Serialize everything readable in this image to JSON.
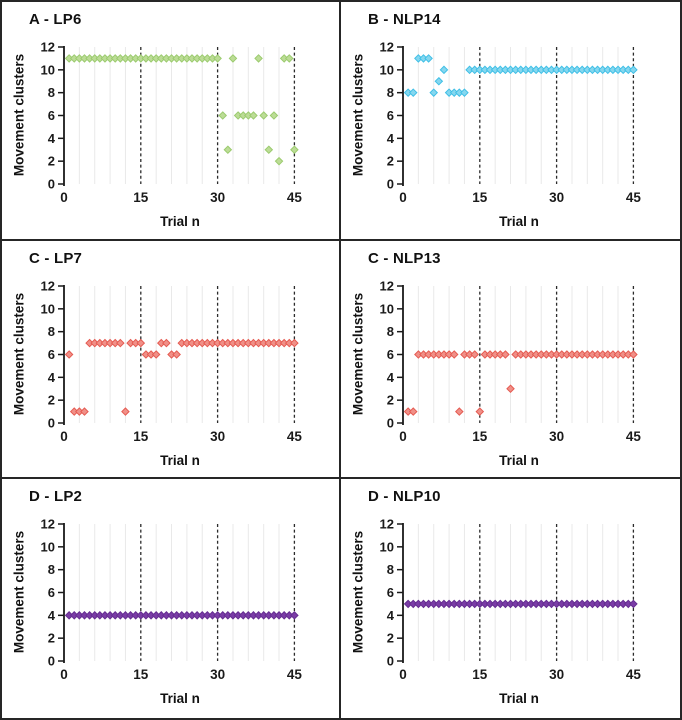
{
  "figure": {
    "ylabel": "Movement clusters",
    "xlabel": "Trial n",
    "x_ticks": [
      0,
      15,
      30,
      45
    ],
    "y_ticks": [
      0,
      2,
      4,
      6,
      8,
      10,
      12
    ],
    "xlim": [
      0,
      47
    ],
    "ylim": [
      0,
      12
    ],
    "major_vlines_x": [
      15,
      30,
      45
    ],
    "minor_vline_step_x": 3,
    "grid": "vertical gridlines only; majors dashed black, minors light gray",
    "colors": {
      "LP6": "#9bcb6e",
      "NLP14": "#3fbfe6",
      "LP7": "#e55a51",
      "NLP13": "#e55a51",
      "LP2": "#652d91",
      "NLP10": "#652d91",
      "axis": "#1a1a1a",
      "major_gridline": "#2b2b2b",
      "minor_gridline": "#e9e9e9"
    }
  },
  "chart_data": [
    {
      "type": "scatter",
      "title": "A - LP6",
      "marker": "diamond",
      "fill": "#bcdc96",
      "stroke": "#9bcb6e",
      "xlabel": "Trial n",
      "ylabel": "Movement clusters",
      "points": [
        [
          1,
          11
        ],
        [
          2,
          11
        ],
        [
          3,
          11
        ],
        [
          4,
          11
        ],
        [
          5,
          11
        ],
        [
          6,
          11
        ],
        [
          7,
          11
        ],
        [
          8,
          11
        ],
        [
          9,
          11
        ],
        [
          10,
          11
        ],
        [
          11,
          11
        ],
        [
          12,
          11
        ],
        [
          13,
          11
        ],
        [
          14,
          11
        ],
        [
          15,
          11
        ],
        [
          16,
          11
        ],
        [
          17,
          11
        ],
        [
          18,
          11
        ],
        [
          19,
          11
        ],
        [
          20,
          11
        ],
        [
          21,
          11
        ],
        [
          22,
          11
        ],
        [
          23,
          11
        ],
        [
          24,
          11
        ],
        [
          25,
          11
        ],
        [
          26,
          11
        ],
        [
          27,
          11
        ],
        [
          28,
          11
        ],
        [
          29,
          11
        ],
        [
          30,
          11
        ],
        [
          31,
          6
        ],
        [
          32,
          3
        ],
        [
          33,
          11
        ],
        [
          34,
          6
        ],
        [
          35,
          6
        ],
        [
          36,
          6
        ],
        [
          37,
          6
        ],
        [
          38,
          11
        ],
        [
          39,
          6
        ],
        [
          40,
          3
        ],
        [
          41,
          6
        ],
        [
          42,
          2
        ],
        [
          43,
          11
        ],
        [
          44,
          11
        ],
        [
          45,
          3
        ]
      ]
    },
    {
      "type": "scatter",
      "title": "B - NLP14",
      "marker": "diamond",
      "fill": "#85d7ef",
      "stroke": "#3fbfe6",
      "xlabel": "Trial n",
      "ylabel": "Movement clusters",
      "points": [
        [
          1,
          8
        ],
        [
          2,
          8
        ],
        [
          3,
          11
        ],
        [
          4,
          11
        ],
        [
          5,
          11
        ],
        [
          6,
          8
        ],
        [
          7,
          9
        ],
        [
          8,
          10
        ],
        [
          9,
          8
        ],
        [
          10,
          8
        ],
        [
          11,
          8
        ],
        [
          12,
          8
        ],
        [
          13,
          10
        ],
        [
          14,
          10
        ],
        [
          15,
          10
        ],
        [
          16,
          10
        ],
        [
          17,
          10
        ],
        [
          18,
          10
        ],
        [
          19,
          10
        ],
        [
          20,
          10
        ],
        [
          21,
          10
        ],
        [
          22,
          10
        ],
        [
          23,
          10
        ],
        [
          24,
          10
        ],
        [
          25,
          10
        ],
        [
          26,
          10
        ],
        [
          27,
          10
        ],
        [
          28,
          10
        ],
        [
          29,
          10
        ],
        [
          30,
          10
        ],
        [
          31,
          10
        ],
        [
          32,
          10
        ],
        [
          33,
          10
        ],
        [
          34,
          10
        ],
        [
          35,
          10
        ],
        [
          36,
          10
        ],
        [
          37,
          10
        ],
        [
          38,
          10
        ],
        [
          39,
          10
        ],
        [
          40,
          10
        ],
        [
          41,
          10
        ],
        [
          42,
          10
        ],
        [
          43,
          10
        ],
        [
          44,
          10
        ],
        [
          45,
          10
        ]
      ]
    },
    {
      "type": "scatter",
      "title": "C - LP7",
      "marker": "diamond",
      "fill": "#f09088",
      "stroke": "#e55a51",
      "xlabel": "Trial n",
      "ylabel": "Movement clusters",
      "points": [
        [
          1,
          6
        ],
        [
          2,
          1
        ],
        [
          3,
          1
        ],
        [
          4,
          1
        ],
        [
          5,
          7
        ],
        [
          6,
          7
        ],
        [
          7,
          7
        ],
        [
          8,
          7
        ],
        [
          9,
          7
        ],
        [
          10,
          7
        ],
        [
          11,
          7
        ],
        [
          12,
          1
        ],
        [
          13,
          7
        ],
        [
          14,
          7
        ],
        [
          15,
          7
        ],
        [
          16,
          6
        ],
        [
          17,
          6
        ],
        [
          18,
          6
        ],
        [
          19,
          7
        ],
        [
          20,
          7
        ],
        [
          21,
          6
        ],
        [
          22,
          6
        ],
        [
          23,
          7
        ],
        [
          24,
          7
        ],
        [
          25,
          7
        ],
        [
          26,
          7
        ],
        [
          27,
          7
        ],
        [
          28,
          7
        ],
        [
          29,
          7
        ],
        [
          30,
          7
        ],
        [
          31,
          7
        ],
        [
          32,
          7
        ],
        [
          33,
          7
        ],
        [
          34,
          7
        ],
        [
          35,
          7
        ],
        [
          36,
          7
        ],
        [
          37,
          7
        ],
        [
          38,
          7
        ],
        [
          39,
          7
        ],
        [
          40,
          7
        ],
        [
          41,
          7
        ],
        [
          42,
          7
        ],
        [
          43,
          7
        ],
        [
          44,
          7
        ],
        [
          45,
          7
        ]
      ]
    },
    {
      "type": "scatter",
      "title": "C - NLP13",
      "marker": "diamond",
      "fill": "#f09088",
      "stroke": "#e55a51",
      "xlabel": "Trial n",
      "ylabel": "Movement clusters",
      "points": [
        [
          1,
          1
        ],
        [
          2,
          1
        ],
        [
          3,
          6
        ],
        [
          4,
          6
        ],
        [
          5,
          6
        ],
        [
          6,
          6
        ],
        [
          7,
          6
        ],
        [
          8,
          6
        ],
        [
          9,
          6
        ],
        [
          10,
          6
        ],
        [
          11,
          1
        ],
        [
          12,
          6
        ],
        [
          13,
          6
        ],
        [
          14,
          6
        ],
        [
          15,
          1
        ],
        [
          16,
          6
        ],
        [
          17,
          6
        ],
        [
          18,
          6
        ],
        [
          19,
          6
        ],
        [
          20,
          6
        ],
        [
          21,
          3
        ],
        [
          22,
          6
        ],
        [
          23,
          6
        ],
        [
          24,
          6
        ],
        [
          25,
          6
        ],
        [
          26,
          6
        ],
        [
          27,
          6
        ],
        [
          28,
          6
        ],
        [
          29,
          6
        ],
        [
          30,
          6
        ],
        [
          31,
          6
        ],
        [
          32,
          6
        ],
        [
          33,
          6
        ],
        [
          34,
          6
        ],
        [
          35,
          6
        ],
        [
          36,
          6
        ],
        [
          37,
          6
        ],
        [
          38,
          6
        ],
        [
          39,
          6
        ],
        [
          40,
          6
        ],
        [
          41,
          6
        ],
        [
          42,
          6
        ],
        [
          43,
          6
        ],
        [
          44,
          6
        ],
        [
          45,
          6
        ]
      ]
    },
    {
      "type": "scatter",
      "title": "D - LP2",
      "marker": "diamond",
      "fill": "#7a3ca6",
      "stroke": "#652d91",
      "xlabel": "Trial n",
      "ylabel": "Movement clusters",
      "points": [
        [
          1,
          4
        ],
        [
          2,
          4
        ],
        [
          3,
          4
        ],
        [
          4,
          4
        ],
        [
          5,
          4
        ],
        [
          6,
          4
        ],
        [
          7,
          4
        ],
        [
          8,
          4
        ],
        [
          9,
          4
        ],
        [
          10,
          4
        ],
        [
          11,
          4
        ],
        [
          12,
          4
        ],
        [
          13,
          4
        ],
        [
          14,
          4
        ],
        [
          15,
          4
        ],
        [
          16,
          4
        ],
        [
          17,
          4
        ],
        [
          18,
          4
        ],
        [
          19,
          4
        ],
        [
          20,
          4
        ],
        [
          21,
          4
        ],
        [
          22,
          4
        ],
        [
          23,
          4
        ],
        [
          24,
          4
        ],
        [
          25,
          4
        ],
        [
          26,
          4
        ],
        [
          27,
          4
        ],
        [
          28,
          4
        ],
        [
          29,
          4
        ],
        [
          30,
          4
        ],
        [
          31,
          4
        ],
        [
          32,
          4
        ],
        [
          33,
          4
        ],
        [
          34,
          4
        ],
        [
          35,
          4
        ],
        [
          36,
          4
        ],
        [
          37,
          4
        ],
        [
          38,
          4
        ],
        [
          39,
          4
        ],
        [
          40,
          4
        ],
        [
          41,
          4
        ],
        [
          42,
          4
        ],
        [
          43,
          4
        ],
        [
          44,
          4
        ],
        [
          45,
          4
        ]
      ]
    },
    {
      "type": "scatter",
      "title": "D - NLP10",
      "marker": "diamond",
      "fill": "#7a3ca6",
      "stroke": "#652d91",
      "xlabel": "Trial n",
      "ylabel": "Movement clusters",
      "points": [
        [
          1,
          5
        ],
        [
          2,
          5
        ],
        [
          3,
          5
        ],
        [
          4,
          5
        ],
        [
          5,
          5
        ],
        [
          6,
          5
        ],
        [
          7,
          5
        ],
        [
          8,
          5
        ],
        [
          9,
          5
        ],
        [
          10,
          5
        ],
        [
          11,
          5
        ],
        [
          12,
          5
        ],
        [
          13,
          5
        ],
        [
          14,
          5
        ],
        [
          15,
          5
        ],
        [
          16,
          5
        ],
        [
          17,
          5
        ],
        [
          18,
          5
        ],
        [
          19,
          5
        ],
        [
          20,
          5
        ],
        [
          21,
          5
        ],
        [
          22,
          5
        ],
        [
          23,
          5
        ],
        [
          24,
          5
        ],
        [
          25,
          5
        ],
        [
          26,
          5
        ],
        [
          27,
          5
        ],
        [
          28,
          5
        ],
        [
          29,
          5
        ],
        [
          30,
          5
        ],
        [
          31,
          5
        ],
        [
          32,
          5
        ],
        [
          33,
          5
        ],
        [
          34,
          5
        ],
        [
          35,
          5
        ],
        [
          36,
          5
        ],
        [
          37,
          5
        ],
        [
          38,
          5
        ],
        [
          39,
          5
        ],
        [
          40,
          5
        ],
        [
          41,
          5
        ],
        [
          42,
          5
        ],
        [
          43,
          5
        ],
        [
          44,
          5
        ],
        [
          45,
          5
        ]
      ]
    }
  ]
}
